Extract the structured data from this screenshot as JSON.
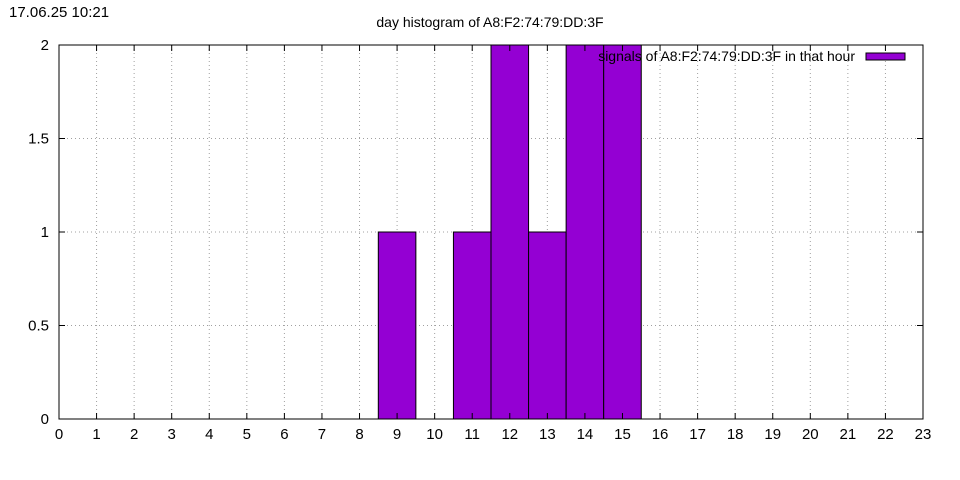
{
  "header": {
    "timestamp": "17.06.25 10:21"
  },
  "chart_data": {
    "type": "bar",
    "title": "day histogram of A8:F2:74:79:DD:3F",
    "xlabel": "",
    "ylabel": "",
    "xlim": [
      0,
      23
    ],
    "ylim": [
      0,
      2
    ],
    "x_ticks": [
      0,
      1,
      2,
      3,
      4,
      5,
      6,
      7,
      8,
      9,
      10,
      11,
      12,
      13,
      14,
      15,
      16,
      17,
      18,
      19,
      20,
      21,
      22,
      23
    ],
    "y_ticks": [
      {
        "value": 0,
        "label": "0"
      },
      {
        "value": 0.5,
        "label": "0.5"
      },
      {
        "value": 1,
        "label": "1"
      },
      {
        "value": 1.5,
        "label": "1.5"
      },
      {
        "value": 2,
        "label": "2"
      }
    ],
    "grid": true,
    "legend_position": "top-right",
    "series": [
      {
        "name": "signals of A8:F2:74:79:DD:3F in that hour",
        "color": "#9400d3",
        "points": [
          {
            "x": 9,
            "y": 1
          },
          {
            "x": 11,
            "y": 1
          },
          {
            "x": 12,
            "y": 2
          },
          {
            "x": 13,
            "y": 1
          },
          {
            "x": 14,
            "y": 2
          },
          {
            "x": 15,
            "y": 2
          }
        ]
      }
    ]
  }
}
